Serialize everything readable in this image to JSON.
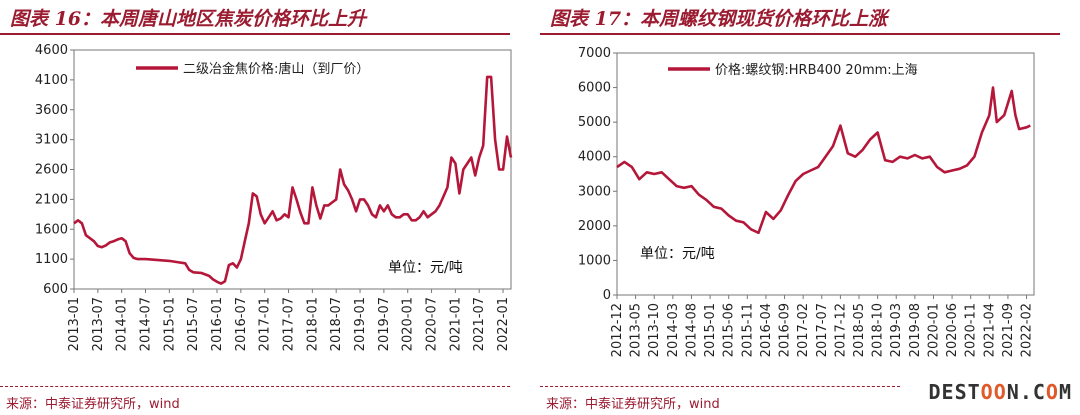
{
  "watermark": "DESTOON.COM",
  "chart_data": [
    {
      "type": "line",
      "title": "图表 16：本周唐山地区焦炭价格环比上升",
      "source": "来源：中泰证券研究所，wind",
      "unit_label": "单位：元/吨",
      "ylim": [
        600,
        4600
      ],
      "yticks": [
        600,
        1100,
        1600,
        2100,
        2600,
        3100,
        3600,
        4100,
        4600
      ],
      "xticks": [
        "2013-01",
        "2013-07",
        "2014-01",
        "2014-07",
        "2015-01",
        "2015-07",
        "2016-01",
        "2016-07",
        "2017-01",
        "2017-07",
        "2018-01",
        "2018-07",
        "2019-01",
        "2019-07",
        "2020-01",
        "2020-07",
        "2021-01",
        "2021-07",
        "2022-01"
      ],
      "xlim": [
        "2013-01",
        "2022-03"
      ],
      "color": "#b5173a",
      "series": [
        {
          "name": "二级冶金焦价格:唐山（到厂价）",
          "x": [
            "2013-01",
            "2013-02",
            "2013-03",
            "2013-04",
            "2013-05",
            "2013-06",
            "2013-07",
            "2013-08",
            "2013-09",
            "2013-10",
            "2013-11",
            "2013-12",
            "2014-01",
            "2014-02",
            "2014-03",
            "2014-04",
            "2014-05",
            "2014-06",
            "2014-07",
            "2014-09",
            "2014-11",
            "2015-01",
            "2015-03",
            "2015-05",
            "2015-06",
            "2015-07",
            "2015-09",
            "2015-11",
            "2015-12",
            "2016-01",
            "2016-02",
            "2016-03",
            "2016-04",
            "2016-05",
            "2016-06",
            "2016-07",
            "2016-08",
            "2016-09",
            "2016-10",
            "2016-11",
            "2016-12",
            "2017-01",
            "2017-02",
            "2017-03",
            "2017-04",
            "2017-05",
            "2017-06",
            "2017-07",
            "2017-08",
            "2017-09",
            "2017-10",
            "2017-11",
            "2017-12",
            "2018-01",
            "2018-02",
            "2018-03",
            "2018-04",
            "2018-05",
            "2018-06",
            "2018-07",
            "2018-08",
            "2018-09",
            "2018-10",
            "2018-11",
            "2018-12",
            "2019-01",
            "2019-02",
            "2019-03",
            "2019-04",
            "2019-05",
            "2019-06",
            "2019-07",
            "2019-08",
            "2019-09",
            "2019-10",
            "2019-11",
            "2019-12",
            "2020-01",
            "2020-02",
            "2020-03",
            "2020-04",
            "2020-05",
            "2020-06",
            "2020-07",
            "2020-08",
            "2020-09",
            "2020-10",
            "2020-11",
            "2020-12",
            "2021-01",
            "2021-02",
            "2021-03",
            "2021-04",
            "2021-05",
            "2021-06",
            "2021-07",
            "2021-08",
            "2021-09",
            "2021-10",
            "2021-11",
            "2021-12",
            "2022-01",
            "2022-02",
            "2022-03"
          ],
          "values": [
            1700,
            1750,
            1700,
            1500,
            1450,
            1400,
            1320,
            1300,
            1330,
            1380,
            1400,
            1430,
            1450,
            1400,
            1200,
            1120,
            1100,
            1100,
            1100,
            1090,
            1080,
            1070,
            1050,
            1030,
            920,
            880,
            870,
            820,
            760,
            720,
            690,
            730,
            1000,
            1030,
            960,
            1100,
            1400,
            1700,
            2200,
            2150,
            1850,
            1700,
            1800,
            1900,
            1750,
            1780,
            1850,
            1800,
            2300,
            2100,
            1880,
            1700,
            1700,
            2300,
            2000,
            1780,
            2000,
            2000,
            2050,
            2100,
            2600,
            2350,
            2250,
            2100,
            1900,
            2100,
            2100,
            2000,
            1850,
            1800,
            2000,
            1900,
            2000,
            1850,
            1800,
            1800,
            1850,
            1850,
            1750,
            1750,
            1800,
            1900,
            1800,
            1850,
            1900,
            2000,
            2150,
            2300,
            2800,
            2700,
            2200,
            2600,
            2700,
            2800,
            2500,
            2800,
            3000,
            4150,
            4150,
            3100,
            2600,
            2600,
            3150,
            2800
          ]
        }
      ]
    },
    {
      "type": "line",
      "title": "图表 17：本周螺纹钢现货价格环比上涨",
      "source": "来源：中泰证券研究所，wind",
      "unit_label": "单位：元/吨",
      "ylim": [
        0,
        7000
      ],
      "yticks": [
        0,
        1000,
        2000,
        3000,
        4000,
        5000,
        6000,
        7000
      ],
      "xticks": [
        "2012-12",
        "2013-05",
        "2013-10",
        "2014-03",
        "2014-08",
        "2015-01",
        "2015-06",
        "2015-11",
        "2016-04",
        "2016-09",
        "2017-02",
        "2017-07",
        "2017-12",
        "2018-05",
        "2018-10",
        "2019-03",
        "2019-08",
        "2020-01",
        "2020-06",
        "2020-11",
        "2021-04",
        "2021-09",
        "2022-02"
      ],
      "xlim": [
        "2012-12",
        "2022-04"
      ],
      "color": "#b5173a",
      "series": [
        {
          "name": "价格:螺纹钢:HRB400 20mm:上海",
          "x": [
            "2012-12",
            "2013-02",
            "2013-04",
            "2013-06",
            "2013-08",
            "2013-10",
            "2013-12",
            "2014-02",
            "2014-04",
            "2014-06",
            "2014-08",
            "2014-10",
            "2014-12",
            "2015-02",
            "2015-04",
            "2015-06",
            "2015-08",
            "2015-10",
            "2015-12",
            "2016-02",
            "2016-04",
            "2016-06",
            "2016-08",
            "2016-10",
            "2016-12",
            "2017-02",
            "2017-04",
            "2017-06",
            "2017-08",
            "2017-10",
            "2017-12",
            "2018-02",
            "2018-04",
            "2018-06",
            "2018-08",
            "2018-10",
            "2018-12",
            "2019-02",
            "2019-04",
            "2019-06",
            "2019-08",
            "2019-10",
            "2019-12",
            "2020-02",
            "2020-04",
            "2020-06",
            "2020-08",
            "2020-10",
            "2020-12",
            "2021-02",
            "2021-04",
            "2021-05",
            "2021-06",
            "2021-08",
            "2021-10",
            "2021-11",
            "2021-12",
            "2022-02",
            "2022-03"
          ],
          "values": [
            3700,
            3850,
            3700,
            3350,
            3550,
            3500,
            3550,
            3350,
            3150,
            3100,
            3150,
            2900,
            2750,
            2550,
            2500,
            2300,
            2150,
            2100,
            1900,
            1800,
            2400,
            2200,
            2450,
            2900,
            3300,
            3500,
            3600,
            3700,
            4000,
            4300,
            4900,
            4100,
            4000,
            4200,
            4500,
            4700,
            3900,
            3850,
            4000,
            3950,
            4050,
            3950,
            4000,
            3700,
            3550,
            3600,
            3650,
            3750,
            4000,
            4700,
            5200,
            6000,
            5000,
            5200,
            5900,
            5200,
            4800,
            4850,
            4900
          ]
        }
      ]
    }
  ]
}
